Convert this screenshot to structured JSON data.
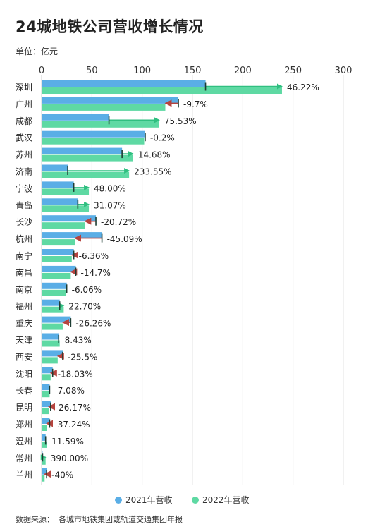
{
  "title": "24城地铁公司营收增长情况",
  "unit_label": "单位：亿元",
  "source_label": "数据来源：",
  "source_text": "各城市地铁集团或轨道交通集团年报",
  "colors": {
    "series_2021": "#5aaee6",
    "series_2022": "#5ed9a3",
    "growth_arrow": "#2fbf80",
    "decline_arrow": "#b5433e",
    "grid": "#e3e3e3"
  },
  "chart_data": {
    "type": "bar",
    "orientation": "horizontal",
    "xlim": [
      0,
      300
    ],
    "x_ticks": [
      0,
      50,
      100,
      150,
      200,
      250,
      300
    ],
    "grid": true,
    "legend_position": "bottom",
    "categories": [
      "深圳",
      "广州",
      "成都",
      "武汉",
      "苏州",
      "济南",
      "宁波",
      "青岛",
      "长沙",
      "杭州",
      "南宁",
      "南昌",
      "南京",
      "福州",
      "重庆",
      "天津",
      "西安",
      "沈阳",
      "长春",
      "昆明",
      "郑州",
      "温州",
      "常州",
      "兰州"
    ],
    "series": [
      {
        "name": "2021年营收",
        "values": [
          163,
          136,
          67,
          103,
          80,
          26,
          32,
          36,
          54,
          60,
          32,
          34,
          25,
          18,
          29,
          17,
          21,
          11,
          8,
          9,
          8,
          4,
          1,
          5
        ]
      },
      {
        "name": "2022年营收",
        "values": [
          239,
          123,
          117,
          102,
          91,
          87,
          47,
          47,
          43,
          33,
          30,
          29,
          24,
          22,
          21,
          18,
          16,
          9,
          8,
          7,
          5,
          5,
          4,
          3
        ]
      }
    ],
    "labels": [
      "46.22%",
      "-9.7%",
      "75.53%",
      "-0.2%",
      "14.68%",
      "233.55%",
      "48.00%",
      "31.07%",
      "-20.72%",
      "-45.09%",
      "-6.36%",
      "-14.7%",
      "-6.06%",
      "22.70%",
      "-26.26%",
      "8.43%",
      "-25.5%",
      "-18.03%",
      "-7.08%",
      "-26.17%",
      "-37.24%",
      "11.59%",
      "390.00%",
      "-40%"
    ]
  }
}
